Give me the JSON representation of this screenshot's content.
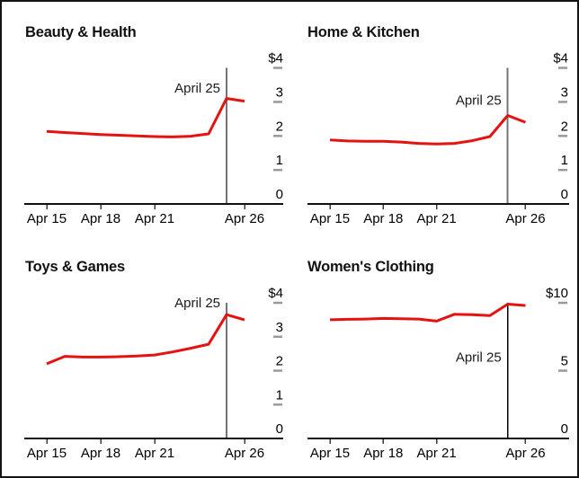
{
  "page": {
    "background": "#ffffff",
    "border_color": "#141414"
  },
  "colors": {
    "line_red": "#e41310",
    "event_line_gray": "#757575",
    "event_line_black": "#000000",
    "y_tick_dash": "#9a9a9a",
    "axis_line": "#111111",
    "x_tick_mark": "#3d3d3d",
    "text": "#000000"
  },
  "chart_data": [
    {
      "type": "line",
      "title": "Beauty & Health",
      "x_unit": "date in April",
      "days": [
        15,
        16,
        17,
        18,
        19,
        20,
        21,
        22,
        23,
        24,
        25,
        26
      ],
      "values": [
        2.13,
        2.1,
        2.07,
        2.04,
        2.02,
        2.0,
        1.98,
        1.97,
        1.99,
        2.06,
        3.1,
        3.02
      ],
      "x_ticks": {
        "days": [
          15,
          18,
          21,
          26
        ],
        "labels": [
          "Apr 15",
          "Apr 18",
          "Apr 21",
          "Apr 26"
        ]
      },
      "y_ticks": {
        "values": [
          4,
          3,
          2,
          1,
          0
        ],
        "labels": [
          "$4",
          "3",
          "2",
          "1",
          "0"
        ]
      },
      "ylim": [
        0,
        4
      ],
      "grid": false,
      "legend": "none",
      "annotation": {
        "text": "April 25",
        "day": 25,
        "value_y": 3.4
      },
      "event_line": {
        "day": 25,
        "color": "#757575",
        "width": 2
      },
      "line_color": "#e41310"
    },
    {
      "type": "line",
      "title": "Home & Kitchen",
      "x_unit": "date in April",
      "days": [
        15,
        16,
        17,
        18,
        19,
        20,
        21,
        22,
        23,
        24,
        25,
        26
      ],
      "values": [
        1.88,
        1.85,
        1.84,
        1.84,
        1.82,
        1.78,
        1.76,
        1.78,
        1.86,
        1.98,
        2.6,
        2.4
      ],
      "x_ticks": {
        "days": [
          15,
          18,
          21,
          26
        ],
        "labels": [
          "Apr 15",
          "Apr 18",
          "Apr 21",
          "Apr 26"
        ]
      },
      "y_ticks": {
        "values": [
          4,
          3,
          2,
          1,
          0
        ],
        "labels": [
          "$4",
          "3",
          "2",
          "1",
          "0"
        ]
      },
      "ylim": [
        0,
        4
      ],
      "grid": false,
      "legend": "none",
      "annotation": {
        "text": "April 25",
        "day": 25,
        "value_y": 3.05
      },
      "event_line": {
        "day": 25,
        "color": "#757575",
        "width": 2
      },
      "line_color": "#e41310"
    },
    {
      "type": "line",
      "title": "Toys & Games",
      "x_unit": "date in April",
      "days": [
        15,
        16,
        17,
        18,
        19,
        20,
        21,
        22,
        23,
        24,
        25,
        26
      ],
      "values": [
        2.2,
        2.42,
        2.4,
        2.4,
        2.41,
        2.43,
        2.46,
        2.55,
        2.66,
        2.78,
        3.65,
        3.5
      ],
      "x_ticks": {
        "days": [
          15,
          18,
          21,
          26
        ],
        "labels": [
          "Apr 15",
          "Apr 18",
          "Apr 21",
          "Apr 26"
        ]
      },
      "y_ticks": {
        "values": [
          4,
          3,
          2,
          1,
          0
        ],
        "labels": [
          "$4",
          "3",
          "2",
          "1",
          "0"
        ]
      },
      "ylim": [
        0,
        4
      ],
      "grid": false,
      "legend": "none",
      "annotation": {
        "text": "April 25",
        "day": 25,
        "value_y": 4.0
      },
      "event_line": {
        "day": 25,
        "color": "#757575",
        "width": 2
      },
      "line_color": "#e41310"
    },
    {
      "type": "line",
      "title": "Women's Clothing",
      "x_unit": "date in April",
      "days": [
        15,
        16,
        17,
        18,
        19,
        20,
        21,
        22,
        23,
        24,
        25,
        26
      ],
      "values": [
        8.75,
        8.78,
        8.8,
        8.85,
        8.83,
        8.8,
        8.65,
        9.15,
        9.12,
        9.05,
        9.9,
        9.8
      ],
      "x_ticks": {
        "days": [
          15,
          18,
          21,
          26
        ],
        "labels": [
          "Apr 15",
          "Apr 18",
          "Apr 21",
          "Apr 26"
        ]
      },
      "y_ticks": {
        "values": [
          10,
          5,
          0
        ],
        "labels": [
          "$10",
          "5",
          "0"
        ]
      },
      "ylim": [
        0,
        10
      ],
      "grid": false,
      "legend": "none",
      "annotation": {
        "text": "April 25",
        "day": 25,
        "value_y": 6.0
      },
      "event_line": {
        "day": 25,
        "color": "#000000",
        "width": 1.3
      },
      "line_color": "#e41310"
    }
  ]
}
